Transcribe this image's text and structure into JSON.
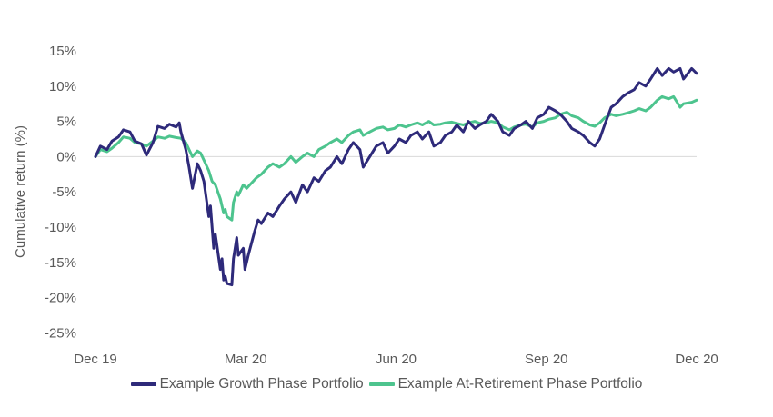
{
  "chart_data": {
    "type": "line",
    "ylabel": "Cumulative return (%)",
    "xlabel": "",
    "x_ticks": [
      "Dec 19",
      "Mar 20",
      "Jun 20",
      "Sep 20",
      "Dec 20"
    ],
    "x_range": [
      "2019-12-31",
      "2020-12-31"
    ],
    "ylim": [
      -25,
      15
    ],
    "y_ticks": [
      15,
      10,
      5,
      0,
      -5,
      -10,
      -15,
      -20,
      -25
    ],
    "y_tick_labels": [
      "15%",
      "10%",
      "5%",
      "0%",
      "-5%",
      "-10%",
      "-15%",
      "-20%",
      "-25%"
    ],
    "grid": false,
    "legend_position": "bottom",
    "series": [
      {
        "name": "Example Growth Phase Portfolio",
        "color": "#2E2A7A",
        "points": [
          [
            "2019-12-31",
            0.0
          ],
          [
            "2020-01-03",
            1.5
          ],
          [
            "2020-01-07",
            1.0
          ],
          [
            "2020-01-10",
            2.2
          ],
          [
            "2020-01-14",
            2.8
          ],
          [
            "2020-01-17",
            3.8
          ],
          [
            "2020-01-21",
            3.5
          ],
          [
            "2020-01-24",
            2.2
          ],
          [
            "2020-01-28",
            1.8
          ],
          [
            "2020-01-31",
            0.2
          ],
          [
            "2020-02-04",
            2.0
          ],
          [
            "2020-02-07",
            4.3
          ],
          [
            "2020-02-11",
            4.0
          ],
          [
            "2020-02-14",
            4.6
          ],
          [
            "2020-02-18",
            4.2
          ],
          [
            "2020-02-20",
            4.8
          ],
          [
            "2020-02-21",
            3.5
          ],
          [
            "2020-02-24",
            1.0
          ],
          [
            "2020-02-26",
            -1.5
          ],
          [
            "2020-02-28",
            -4.5
          ],
          [
            "2020-03-02",
            -1.0
          ],
          [
            "2020-03-04",
            -2.0
          ],
          [
            "2020-03-06",
            -3.5
          ],
          [
            "2020-03-09",
            -8.5
          ],
          [
            "2020-03-10",
            -7.0
          ],
          [
            "2020-03-12",
            -13.0
          ],
          [
            "2020-03-13",
            -11.0
          ],
          [
            "2020-03-16",
            -16.0
          ],
          [
            "2020-03-17",
            -14.5
          ],
          [
            "2020-03-18",
            -17.5
          ],
          [
            "2020-03-19",
            -17.0
          ],
          [
            "2020-03-20",
            -18.0
          ],
          [
            "2020-03-23",
            -18.2
          ],
          [
            "2020-03-24",
            -14.5
          ],
          [
            "2020-03-25",
            -13.0
          ],
          [
            "2020-03-26",
            -11.5
          ],
          [
            "2020-03-27",
            -14.0
          ],
          [
            "2020-03-30",
            -13.0
          ],
          [
            "2020-03-31",
            -16.0
          ],
          [
            "2020-04-02",
            -14.0
          ],
          [
            "2020-04-06",
            -10.5
          ],
          [
            "2020-04-08",
            -9.0
          ],
          [
            "2020-04-10",
            -9.5
          ],
          [
            "2020-04-14",
            -8.0
          ],
          [
            "2020-04-17",
            -8.5
          ],
          [
            "2020-04-21",
            -7.0
          ],
          [
            "2020-04-24",
            -6.0
          ],
          [
            "2020-04-28",
            -5.0
          ],
          [
            "2020-05-01",
            -6.5
          ],
          [
            "2020-05-05",
            -4.0
          ],
          [
            "2020-05-08",
            -5.0
          ],
          [
            "2020-05-12",
            -3.0
          ],
          [
            "2020-05-15",
            -3.5
          ],
          [
            "2020-05-19",
            -2.0
          ],
          [
            "2020-05-22",
            -1.5
          ],
          [
            "2020-05-26",
            0.0
          ],
          [
            "2020-05-29",
            -1.0
          ],
          [
            "2020-06-02",
            1.0
          ],
          [
            "2020-06-05",
            2.0
          ],
          [
            "2020-06-09",
            1.0
          ],
          [
            "2020-06-11",
            -1.5
          ],
          [
            "2020-06-15",
            0.0
          ],
          [
            "2020-06-19",
            1.5
          ],
          [
            "2020-06-23",
            2.0
          ],
          [
            "2020-06-26",
            0.5
          ],
          [
            "2020-06-30",
            1.5
          ],
          [
            "2020-07-03",
            2.5
          ],
          [
            "2020-07-07",
            2.0
          ],
          [
            "2020-07-10",
            3.0
          ],
          [
            "2020-07-14",
            3.5
          ],
          [
            "2020-07-17",
            2.5
          ],
          [
            "2020-07-21",
            3.5
          ],
          [
            "2020-07-24",
            1.5
          ],
          [
            "2020-07-28",
            2.0
          ],
          [
            "2020-07-31",
            3.0
          ],
          [
            "2020-08-04",
            3.5
          ],
          [
            "2020-08-07",
            4.5
          ],
          [
            "2020-08-11",
            3.5
          ],
          [
            "2020-08-14",
            5.0
          ],
          [
            "2020-08-18",
            4.0
          ],
          [
            "2020-08-21",
            4.5
          ],
          [
            "2020-08-25",
            5.0
          ],
          [
            "2020-08-28",
            6.0
          ],
          [
            "2020-09-01",
            5.0
          ],
          [
            "2020-09-04",
            3.5
          ],
          [
            "2020-09-08",
            3.0
          ],
          [
            "2020-09-11",
            4.0
          ],
          [
            "2020-09-15",
            4.5
          ],
          [
            "2020-09-18",
            5.0
          ],
          [
            "2020-09-22",
            4.0
          ],
          [
            "2020-09-25",
            5.5
          ],
          [
            "2020-09-29",
            6.0
          ],
          [
            "2020-10-02",
            7.0
          ],
          [
            "2020-10-06",
            6.5
          ],
          [
            "2020-10-09",
            6.0
          ],
          [
            "2020-10-13",
            5.0
          ],
          [
            "2020-10-16",
            4.0
          ],
          [
            "2020-10-20",
            3.5
          ],
          [
            "2020-10-23",
            3.0
          ],
          [
            "2020-10-27",
            2.0
          ],
          [
            "2020-10-30",
            1.5
          ],
          [
            "2020-11-02",
            2.5
          ],
          [
            "2020-11-05",
            4.5
          ],
          [
            "2020-11-09",
            7.0
          ],
          [
            "2020-11-12",
            7.5
          ],
          [
            "2020-11-16",
            8.5
          ],
          [
            "2020-11-19",
            9.0
          ],
          [
            "2020-11-23",
            9.5
          ],
          [
            "2020-11-26",
            10.5
          ],
          [
            "2020-11-30",
            10.0
          ],
          [
            "2020-12-03",
            11.0
          ],
          [
            "2020-12-07",
            12.5
          ],
          [
            "2020-12-10",
            11.5
          ],
          [
            "2020-12-14",
            12.5
          ],
          [
            "2020-12-17",
            12.0
          ],
          [
            "2020-12-21",
            12.5
          ],
          [
            "2020-12-23",
            11.0
          ],
          [
            "2020-12-28",
            12.5
          ],
          [
            "2020-12-31",
            11.8
          ]
        ]
      },
      {
        "name": "Example At-Retirement Phase Portfolio",
        "color": "#4DC48E",
        "points": [
          [
            "2019-12-31",
            0.0
          ],
          [
            "2020-01-03",
            1.0
          ],
          [
            "2020-01-07",
            0.7
          ],
          [
            "2020-01-10",
            1.2
          ],
          [
            "2020-01-14",
            2.0
          ],
          [
            "2020-01-17",
            2.8
          ],
          [
            "2020-01-21",
            2.6
          ],
          [
            "2020-01-24",
            2.0
          ],
          [
            "2020-01-28",
            1.8
          ],
          [
            "2020-01-31",
            1.5
          ],
          [
            "2020-02-04",
            2.2
          ],
          [
            "2020-02-07",
            2.8
          ],
          [
            "2020-02-11",
            2.6
          ],
          [
            "2020-02-14",
            2.9
          ],
          [
            "2020-02-18",
            2.7
          ],
          [
            "2020-02-21",
            2.6
          ],
          [
            "2020-02-24",
            2.0
          ],
          [
            "2020-02-26",
            1.0
          ],
          [
            "2020-02-28",
            0.0
          ],
          [
            "2020-03-02",
            0.8
          ],
          [
            "2020-03-04",
            0.5
          ],
          [
            "2020-03-06",
            -0.5
          ],
          [
            "2020-03-09",
            -2.0
          ],
          [
            "2020-03-11",
            -3.5
          ],
          [
            "2020-03-13",
            -4.0
          ],
          [
            "2020-03-16",
            -6.0
          ],
          [
            "2020-03-17",
            -7.0
          ],
          [
            "2020-03-18",
            -8.0
          ],
          [
            "2020-03-19",
            -7.5
          ],
          [
            "2020-03-20",
            -8.5
          ],
          [
            "2020-03-23",
            -9.0
          ],
          [
            "2020-03-24",
            -6.5
          ],
          [
            "2020-03-26",
            -5.0
          ],
          [
            "2020-03-27",
            -5.5
          ],
          [
            "2020-03-30",
            -4.0
          ],
          [
            "2020-04-01",
            -4.5
          ],
          [
            "2020-04-03",
            -4.0
          ],
          [
            "2020-04-07",
            -3.0
          ],
          [
            "2020-04-10",
            -2.5
          ],
          [
            "2020-04-14",
            -1.5
          ],
          [
            "2020-04-17",
            -1.0
          ],
          [
            "2020-04-21",
            -1.5
          ],
          [
            "2020-04-24",
            -1.0
          ],
          [
            "2020-04-28",
            0.0
          ],
          [
            "2020-05-01",
            -0.8
          ],
          [
            "2020-05-05",
            0.0
          ],
          [
            "2020-05-08",
            0.5
          ],
          [
            "2020-05-12",
            0.0
          ],
          [
            "2020-05-15",
            1.0
          ],
          [
            "2020-05-19",
            1.5
          ],
          [
            "2020-05-22",
            2.0
          ],
          [
            "2020-05-26",
            2.5
          ],
          [
            "2020-05-29",
            2.0
          ],
          [
            "2020-06-02",
            3.0
          ],
          [
            "2020-06-05",
            3.5
          ],
          [
            "2020-06-09",
            3.8
          ],
          [
            "2020-06-11",
            3.0
          ],
          [
            "2020-06-15",
            3.5
          ],
          [
            "2020-06-19",
            4.0
          ],
          [
            "2020-06-23",
            4.2
          ],
          [
            "2020-06-26",
            3.8
          ],
          [
            "2020-06-30",
            4.0
          ],
          [
            "2020-07-03",
            4.5
          ],
          [
            "2020-07-07",
            4.2
          ],
          [
            "2020-07-10",
            4.5
          ],
          [
            "2020-07-14",
            4.8
          ],
          [
            "2020-07-17",
            4.5
          ],
          [
            "2020-07-21",
            5.0
          ],
          [
            "2020-07-24",
            4.5
          ],
          [
            "2020-07-28",
            4.6
          ],
          [
            "2020-07-31",
            4.8
          ],
          [
            "2020-08-04",
            4.9
          ],
          [
            "2020-08-07",
            4.7
          ],
          [
            "2020-08-11",
            4.5
          ],
          [
            "2020-08-14",
            4.8
          ],
          [
            "2020-08-18",
            5.0
          ],
          [
            "2020-08-21",
            4.7
          ],
          [
            "2020-08-25",
            4.8
          ],
          [
            "2020-08-28",
            5.0
          ],
          [
            "2020-09-01",
            4.8
          ],
          [
            "2020-09-04",
            4.2
          ],
          [
            "2020-09-08",
            3.8
          ],
          [
            "2020-09-11",
            4.2
          ],
          [
            "2020-09-15",
            4.5
          ],
          [
            "2020-09-18",
            4.6
          ],
          [
            "2020-09-22",
            4.2
          ],
          [
            "2020-09-25",
            4.8
          ],
          [
            "2020-09-29",
            5.0
          ],
          [
            "2020-10-02",
            5.3
          ],
          [
            "2020-10-06",
            5.5
          ],
          [
            "2020-10-09",
            6.0
          ],
          [
            "2020-10-13",
            6.3
          ],
          [
            "2020-10-16",
            5.8
          ],
          [
            "2020-10-20",
            5.5
          ],
          [
            "2020-10-23",
            5.0
          ],
          [
            "2020-10-27",
            4.5
          ],
          [
            "2020-10-30",
            4.3
          ],
          [
            "2020-11-02",
            4.8
          ],
          [
            "2020-11-05",
            5.5
          ],
          [
            "2020-11-09",
            6.0
          ],
          [
            "2020-11-12",
            5.8
          ],
          [
            "2020-11-16",
            6.0
          ],
          [
            "2020-11-19",
            6.2
          ],
          [
            "2020-11-23",
            6.5
          ],
          [
            "2020-11-26",
            6.8
          ],
          [
            "2020-11-30",
            6.5
          ],
          [
            "2020-12-03",
            7.0
          ],
          [
            "2020-12-07",
            8.0
          ],
          [
            "2020-12-10",
            8.5
          ],
          [
            "2020-12-14",
            8.2
          ],
          [
            "2020-12-17",
            8.5
          ],
          [
            "2020-12-21",
            7.0
          ],
          [
            "2020-12-23",
            7.5
          ],
          [
            "2020-12-28",
            7.7
          ],
          [
            "2020-12-31",
            8.0
          ]
        ]
      }
    ]
  }
}
